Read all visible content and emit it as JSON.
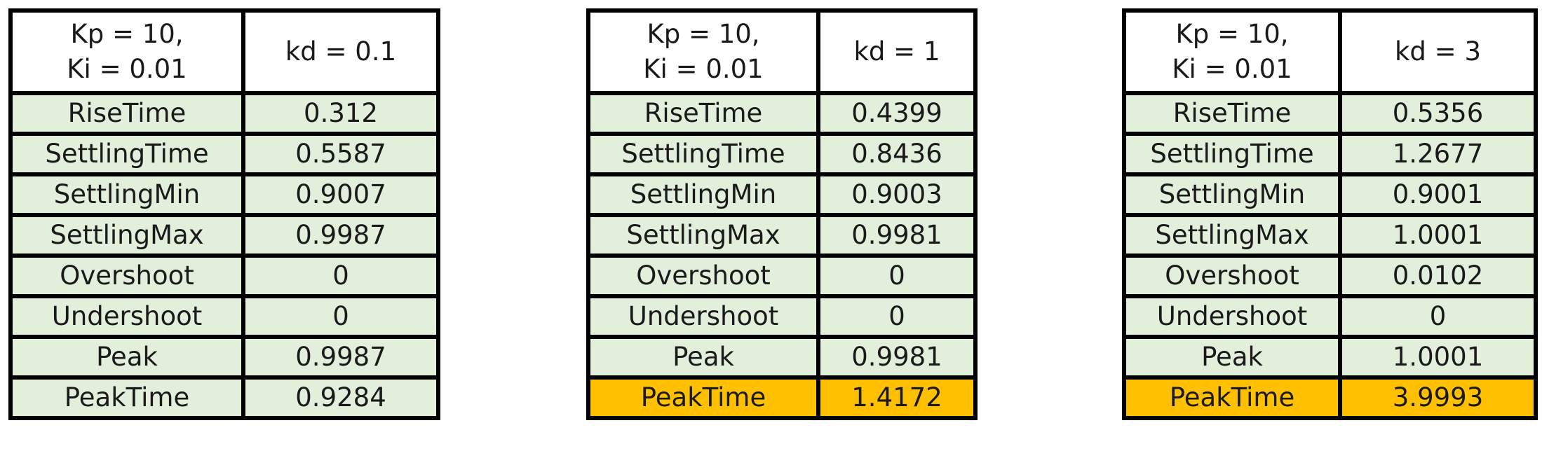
{
  "tables": [
    {
      "header": {
        "line1": "Kp = 10,",
        "line2": "Ki = 0.01",
        "param": "kd = 0.1"
      },
      "rows": [
        {
          "label": "RiseTime",
          "value": "0.312"
        },
        {
          "label": "SettlingTime",
          "value": "0.5587"
        },
        {
          "label": "SettlingMin",
          "value": "0.9007"
        },
        {
          "label": "SettlingMax",
          "value": "0.9987"
        },
        {
          "label": "Overshoot",
          "value": "0"
        },
        {
          "label": "Undershoot",
          "value": "0"
        },
        {
          "label": "Peak",
          "value": "0.9987"
        },
        {
          "label": "PeakTime",
          "value": "0.9284"
        }
      ]
    },
    {
      "header": {
        "line1": "Kp = 10,",
        "line2": "Ki = 0.01",
        "param": "kd = 1"
      },
      "rows": [
        {
          "label": "RiseTime",
          "value": "0.4399"
        },
        {
          "label": "SettlingTime",
          "value": "0.8436"
        },
        {
          "label": "SettlingMin",
          "value": "0.9003"
        },
        {
          "label": "SettlingMax",
          "value": "0.9981"
        },
        {
          "label": "Overshoot",
          "value": "0"
        },
        {
          "label": "Undershoot",
          "value": "0"
        },
        {
          "label": "Peak",
          "value": "0.9981"
        },
        {
          "label": "PeakTime",
          "value": "1.4172"
        }
      ]
    },
    {
      "header": {
        "line1": "Kp = 10,",
        "line2": "Ki = 0.01",
        "param": "kd = 3"
      },
      "rows": [
        {
          "label": "RiseTime",
          "value": "0.5356"
        },
        {
          "label": "SettlingTime",
          "value": "1.2677"
        },
        {
          "label": "SettlingMin",
          "value": "0.9001"
        },
        {
          "label": "SettlingMax",
          "value": "1.0001"
        },
        {
          "label": "Overshoot",
          "value": "0.0102"
        },
        {
          "label": "Undershoot",
          "value": "0"
        },
        {
          "label": "Peak",
          "value": "1.0001"
        },
        {
          "label": "PeakTime",
          "value": "3.9993"
        }
      ]
    }
  ],
  "colors": {
    "row_fill": "#e2efda",
    "highlight_fill": "#ffc000",
    "header_fill": "#ffffff",
    "border": "#000000"
  }
}
